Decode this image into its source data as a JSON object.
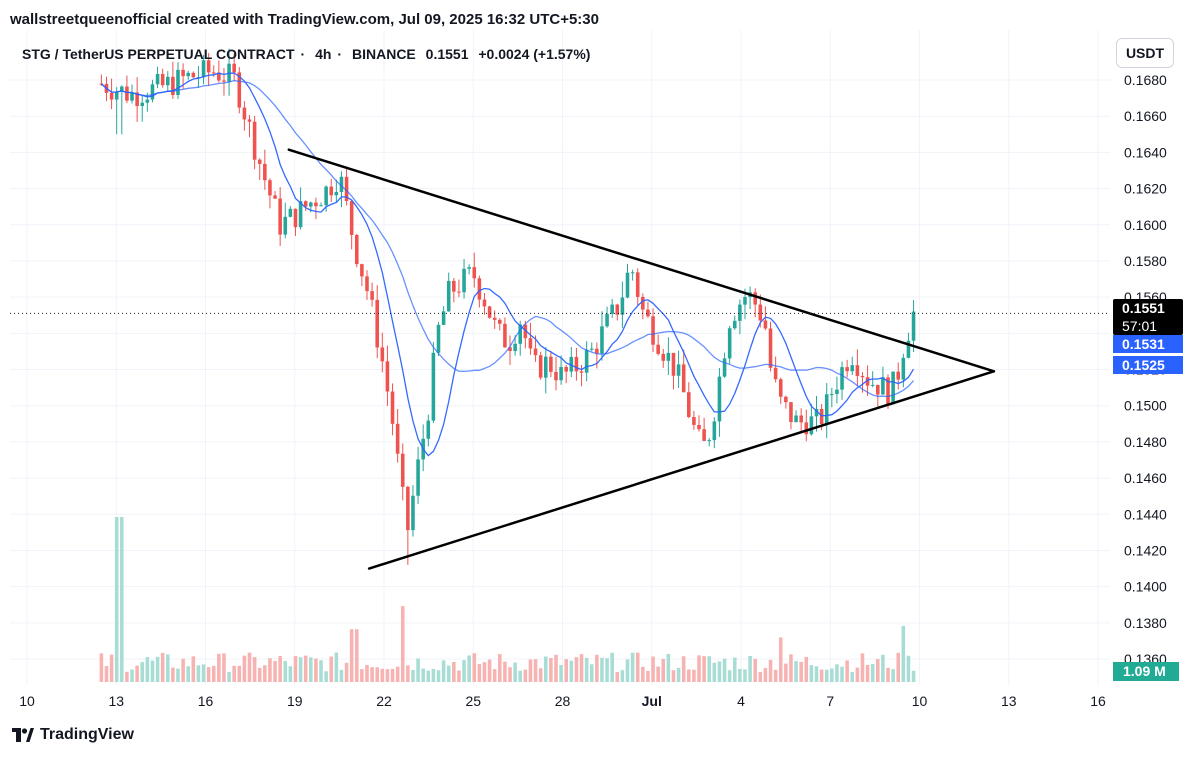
{
  "header": {
    "credit": "wallstreetqueenofficial created with TradingView.com, Jul 09, 2025 16:32 UTC+5:30"
  },
  "legend": {
    "symbol": "STG / TetherUS PERPETUAL CONTRACT",
    "interval": "4h",
    "exchange": "BINANCE",
    "price": "0.1551",
    "change": "+0.0024 (+1.57%)"
  },
  "currency_button": "USDT",
  "price_tags": {
    "last_price": "0.1551",
    "countdown": "57:01",
    "ma_fast": "0.1531",
    "ma_slow": "0.1525"
  },
  "volume_tag": "1.09 M",
  "footer": {
    "brand": "TradingView"
  },
  "colors": {
    "up": "#26a69a",
    "down": "#ef5350",
    "ma": "#2962ff",
    "trendline": "#000000"
  },
  "chart_data": {
    "type": "candlestick",
    "title": "STG / TetherUS PERPETUAL CONTRACT · 4h · BINANCE",
    "ylim": [
      0.135,
      0.169
    ],
    "yticks": [
      "0.1360",
      "0.1380",
      "0.1400",
      "0.1420",
      "0.1440",
      "0.1460",
      "0.1480",
      "0.1500",
      "0.1520",
      "0.1540",
      "0.1560",
      "0.1580",
      "0.1600",
      "0.1620",
      "0.1640",
      "0.1660",
      "0.1680"
    ],
    "x_dates": [
      {
        "label": "10",
        "day": 10
      },
      {
        "label": "13",
        "day": 13
      },
      {
        "label": "16",
        "day": 16
      },
      {
        "label": "19",
        "day": 19
      },
      {
        "label": "22",
        "day": 22
      },
      {
        "label": "25",
        "day": 25
      },
      {
        "label": "28",
        "day": 28
      },
      {
        "label": "Jul",
        "day": 31,
        "bold": true
      },
      {
        "label": "4",
        "day": 34
      },
      {
        "label": "7",
        "day": 37
      },
      {
        "label": "10",
        "day": 40
      },
      {
        "label": "13",
        "day": 43
      },
      {
        "label": "16",
        "day": 46
      }
    ],
    "path": [
      [
        12.5,
        0.1678
      ],
      [
        13.5,
        0.1672
      ],
      [
        14.5,
        0.1676
      ],
      [
        15.5,
        0.1682
      ],
      [
        16.3,
        0.1685
      ],
      [
        17.0,
        0.168
      ],
      [
        17.5,
        0.1652
      ],
      [
        18.0,
        0.1625
      ],
      [
        18.5,
        0.16
      ],
      [
        19.0,
        0.1605
      ],
      [
        19.5,
        0.1612
      ],
      [
        20.0,
        0.1618
      ],
      [
        20.5,
        0.1628
      ],
      [
        21.0,
        0.159
      ],
      [
        21.5,
        0.156
      ],
      [
        22.0,
        0.152
      ],
      [
        22.3,
        0.149
      ],
      [
        22.6,
        0.145
      ],
      [
        22.8,
        0.1432
      ],
      [
        23.1,
        0.1462
      ],
      [
        23.5,
        0.15
      ],
      [
        23.8,
        0.154
      ],
      [
        24.2,
        0.1563
      ],
      [
        24.6,
        0.1568
      ],
      [
        25.0,
        0.1573
      ],
      [
        25.4,
        0.1558
      ],
      [
        25.8,
        0.154
      ],
      [
        26.2,
        0.1535
      ],
      [
        26.6,
        0.1548
      ],
      [
        27.0,
        0.152
      ],
      [
        27.5,
        0.1524
      ],
      [
        28.0,
        0.1516
      ],
      [
        28.5,
        0.1522
      ],
      [
        29.0,
        0.153
      ],
      [
        29.5,
        0.1545
      ],
      [
        29.9,
        0.1556
      ],
      [
        30.3,
        0.1578
      ],
      [
        30.7,
        0.1552
      ],
      [
        31.1,
        0.154
      ],
      [
        31.5,
        0.1528
      ],
      [
        31.8,
        0.152
      ],
      [
        32.1,
        0.1505
      ],
      [
        32.4,
        0.1488
      ],
      [
        32.7,
        0.1475
      ],
      [
        33.0,
        0.1488
      ],
      [
        33.3,
        0.1518
      ],
      [
        33.6,
        0.1548
      ],
      [
        33.9,
        0.1556
      ],
      [
        34.2,
        0.1562
      ],
      [
        34.5,
        0.1556
      ],
      [
        34.8,
        0.1546
      ],
      [
        35.0,
        0.152
      ],
      [
        35.3,
        0.1502
      ],
      [
        35.6,
        0.1496
      ],
      [
        35.9,
        0.149
      ],
      [
        36.2,
        0.1492
      ],
      [
        36.5,
        0.149
      ],
      [
        36.8,
        0.1496
      ],
      [
        37.1,
        0.151
      ],
      [
        37.4,
        0.152
      ],
      [
        37.7,
        0.153
      ],
      [
        38.0,
        0.1522
      ],
      [
        38.3,
        0.1514
      ],
      [
        38.6,
        0.1512
      ],
      [
        38.9,
        0.1508
      ],
      [
        39.2,
        0.1512
      ],
      [
        39.5,
        0.1536
      ],
      [
        39.8,
        0.1551
      ]
    ],
    "candle_count": 160,
    "ma_periods": [
      9,
      21
    ],
    "volume_spikes": [
      {
        "day": 13.1,
        "value": 1.0
      },
      {
        "day": 22.6,
        "value": 0.46
      },
      {
        "day": 21.0,
        "value": 0.32
      },
      {
        "day": 39.4,
        "value": 0.34
      },
      {
        "day": 35.3,
        "value": 0.27
      }
    ],
    "trendlines": [
      {
        "name": "upper",
        "from": {
          "day": 18.8,
          "price": 0.16415
        },
        "to": {
          "day": 42.5,
          "price": 0.1519
        }
      },
      {
        "name": "lower",
        "from": {
          "day": 21.5,
          "price": 0.141
        },
        "to": {
          "day": 42.5,
          "price": 0.1519
        }
      }
    ],
    "last_price_line": 0.1551,
    "grid": true,
    "legend_position": "top-left"
  }
}
